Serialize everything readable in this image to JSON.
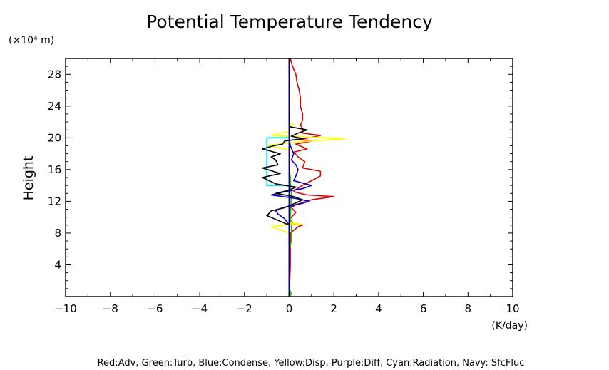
{
  "chart_data": {
    "type": "line",
    "title": "Potential Temperature Tendency",
    "ylabel": "Height",
    "y_unit": "(×10⁴ m)",
    "x_unit": "(K/day)",
    "xlim": [
      -10,
      10
    ],
    "ylim": [
      0,
      30
    ],
    "x_ticks": [
      -10,
      -8,
      -6,
      -4,
      -2,
      0,
      2,
      4,
      6,
      8,
      10
    ],
    "x_tick_labels": [
      "−10",
      "−8",
      "−6",
      "−4",
      "−2",
      "0",
      "2",
      "4",
      "6",
      "8",
      "10"
    ],
    "y_ticks": [
      4,
      8,
      12,
      16,
      20,
      24,
      28
    ],
    "y_tick_labels": [
      "4",
      "8",
      "12",
      "16",
      "20",
      "24",
      "28"
    ],
    "grid": false,
    "legend_text": "Red:Adv, Green:Turb, Blue:Condense, Yellow:Disp, Purple:Diff, Cyan:Radiation, Navy: SfcFluc",
    "series": [
      {
        "key": "adv",
        "color": "#e00000",
        "points": [
          [
            0,
            0
          ],
          [
            0.05,
            4
          ],
          [
            0.05,
            8
          ],
          [
            0.4,
            8.8
          ],
          [
            0.6,
            9
          ],
          [
            0.2,
            9.2
          ],
          [
            0,
            9.6
          ],
          [
            0.1,
            10
          ],
          [
            0.3,
            10.6
          ],
          [
            0.1,
            11.2
          ],
          [
            0.3,
            11.6
          ],
          [
            0.8,
            12
          ],
          [
            1.0,
            12.2
          ],
          [
            2.0,
            12.6
          ],
          [
            0.8,
            12.8
          ],
          [
            0.2,
            13.2
          ],
          [
            0.3,
            13.5
          ],
          [
            0.6,
            14
          ],
          [
            1.0,
            14.6
          ],
          [
            1.4,
            15.2
          ],
          [
            1.4,
            15.8
          ],
          [
            0.6,
            16.2
          ],
          [
            0.7,
            17
          ],
          [
            0.4,
            17.6
          ],
          [
            0.2,
            18.2
          ],
          [
            0.8,
            18.6
          ],
          [
            0.3,
            19.2
          ],
          [
            1.0,
            19.6
          ],
          [
            0.5,
            19.8
          ],
          [
            1.4,
            20.3
          ],
          [
            0.6,
            20.6
          ],
          [
            0.6,
            21.2
          ],
          [
            0.5,
            21.6
          ],
          [
            0.6,
            22.2
          ],
          [
            0.6,
            23
          ],
          [
            0.5,
            24
          ],
          [
            0.5,
            25
          ],
          [
            0.45,
            26
          ],
          [
            0.35,
            27
          ],
          [
            0.3,
            28
          ],
          [
            0.15,
            29
          ],
          [
            0.05,
            30
          ]
        ]
      },
      {
        "key": "turb",
        "color": "#00cc00",
        "points": [
          [
            0,
            0
          ],
          [
            0.1,
            0.3
          ],
          [
            0,
            1
          ],
          [
            0,
            6
          ],
          [
            0.1,
            7
          ],
          [
            0.1,
            8
          ],
          [
            0.1,
            9
          ],
          [
            0.05,
            10
          ],
          [
            0.1,
            13
          ],
          [
            0.05,
            14
          ],
          [
            0.05,
            15
          ],
          [
            0,
            16
          ],
          [
            0,
            30
          ]
        ]
      },
      {
        "key": "condense",
        "color": "#0000cc",
        "points": [
          [
            0,
            0
          ],
          [
            0,
            9
          ],
          [
            -0.2,
            9.8
          ],
          [
            -0.5,
            10.4
          ],
          [
            -0.6,
            10.8
          ],
          [
            -0.3,
            11.2
          ],
          [
            0.4,
            11.6
          ],
          [
            0.9,
            12
          ],
          [
            0.2,
            12.4
          ],
          [
            -0.8,
            12.8
          ],
          [
            -0.2,
            13.2
          ],
          [
            0.6,
            13.6
          ],
          [
            1.0,
            14
          ],
          [
            0.2,
            14.6
          ],
          [
            0.3,
            15.2
          ],
          [
            0.4,
            16
          ],
          [
            0.3,
            16.6
          ],
          [
            0.1,
            17.2
          ],
          [
            0.2,
            18
          ],
          [
            0.05,
            19
          ],
          [
            0,
            20
          ],
          [
            0,
            30
          ]
        ]
      },
      {
        "key": "disp",
        "color": "#ffff00",
        "points": [
          [
            0,
            0
          ],
          [
            0,
            8
          ],
          [
            -0.8,
            8.8
          ],
          [
            -0.3,
            9
          ],
          [
            0.6,
            9.1
          ],
          [
            0,
            9.3
          ],
          [
            0,
            18.5
          ],
          [
            -1.0,
            19
          ],
          [
            -0.5,
            19.2
          ],
          [
            0.5,
            19.5
          ],
          [
            2.5,
            19.9
          ],
          [
            0.8,
            20.1
          ],
          [
            -0.8,
            20.3
          ],
          [
            0,
            20.8
          ],
          [
            0,
            21.4
          ],
          [
            0.2,
            21.6
          ],
          [
            0,
            22
          ],
          [
            0,
            30
          ]
        ]
      },
      {
        "key": "diff",
        "color": "#cc00cc",
        "points": [
          [
            0,
            0
          ],
          [
            0,
            30
          ]
        ]
      },
      {
        "key": "radiation",
        "color": "#00e0ff",
        "points": [
          [
            0,
            14
          ],
          [
            -1.0,
            14
          ],
          [
            -1.0,
            20
          ],
          [
            0,
            20
          ]
        ]
      },
      {
        "key": "total",
        "color": "#000000",
        "points": [
          [
            0,
            0
          ],
          [
            0,
            9
          ],
          [
            -1.0,
            10.2
          ],
          [
            -0.8,
            10.8
          ],
          [
            -0.2,
            11.2
          ],
          [
            0.3,
            11.8
          ],
          [
            0.6,
            12.2
          ],
          [
            0.2,
            12.6
          ],
          [
            -0.6,
            13
          ],
          [
            0,
            13.4
          ],
          [
            0.3,
            13.8
          ],
          [
            -0.6,
            14.2
          ],
          [
            -1.2,
            15
          ],
          [
            -0.4,
            15.5
          ],
          [
            -1.2,
            16.2
          ],
          [
            -0.5,
            16.6
          ],
          [
            -0.6,
            17.2
          ],
          [
            -0.8,
            17.6
          ],
          [
            -0.4,
            18
          ],
          [
            -1.2,
            18.6
          ],
          [
            -0.7,
            19
          ],
          [
            -0.3,
            19.2
          ],
          [
            -0.2,
            19.6
          ],
          [
            0.6,
            19.9
          ],
          [
            0.1,
            20.2
          ],
          [
            0.4,
            20.6
          ],
          [
            0.8,
            21
          ],
          [
            0,
            21.4
          ],
          [
            0,
            30
          ]
        ]
      },
      {
        "key": "sfcfluc",
        "color": "#000080",
        "points": [
          [
            0,
            0
          ],
          [
            0,
            30
          ]
        ]
      }
    ]
  }
}
